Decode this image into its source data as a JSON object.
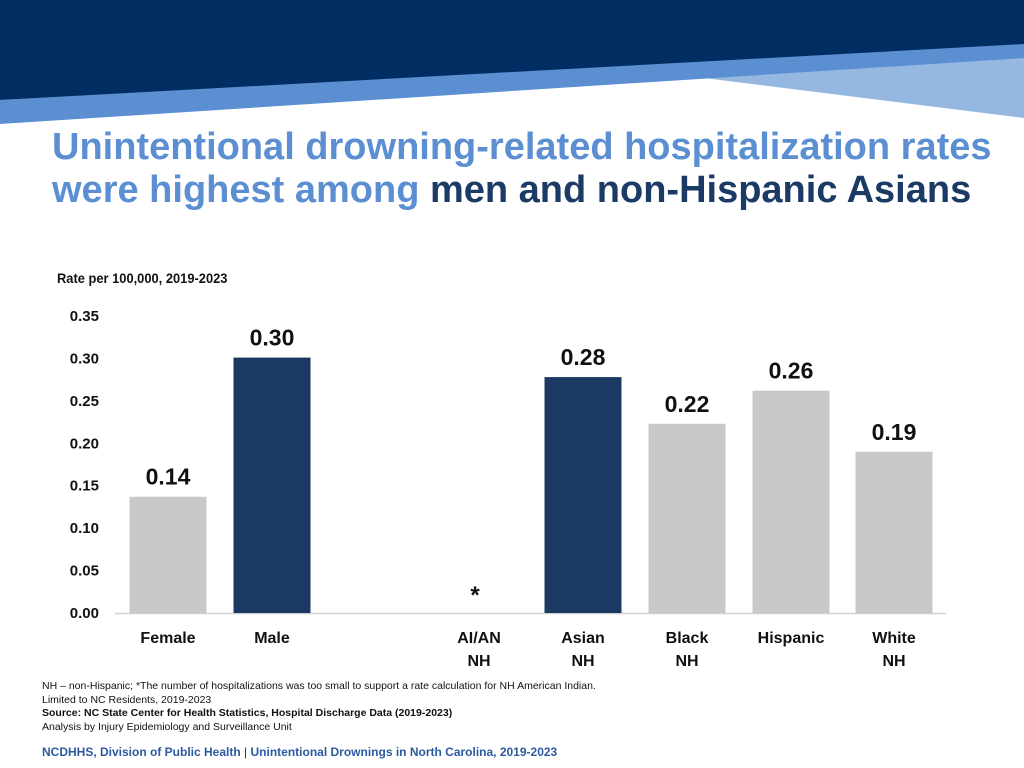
{
  "header": {
    "title_part1": "Unintentional drowning-related hospitalization rates were highest among ",
    "title_part2": "men and non-Hispanic Asians",
    "subtitle": "Rate per 100,000, 2019-2023",
    "colors": {
      "navy": "#002d62",
      "mid_blue": "#5b8fd2",
      "light_blue": "#94b8e0"
    }
  },
  "chart_data": {
    "type": "bar",
    "title": "Unintentional drowning-related hospitalization rates were highest among men and non-Hispanic Asians",
    "ylabel": "Rate per 100,000, 2019-2023",
    "xlabel": "",
    "ylim": [
      0,
      0.35
    ],
    "yticks": [
      "0.00",
      "0.05",
      "0.10",
      "0.15",
      "0.20",
      "0.25",
      "0.30",
      "0.35"
    ],
    "grid": false,
    "bars": [
      {
        "category_lines": [
          "Female"
        ],
        "value": 0.137,
        "label": "0.14",
        "highlight": false
      },
      {
        "category_lines": [
          "Male"
        ],
        "value": 0.301,
        "label": "0.30",
        "highlight": true
      },
      {
        "category_lines": [
          "AI/AN",
          "NH"
        ],
        "value": null,
        "label": "*",
        "highlight": false
      },
      {
        "category_lines": [
          "Asian",
          "NH"
        ],
        "value": 0.278,
        "label": "0.28",
        "highlight": true
      },
      {
        "category_lines": [
          "Black",
          "NH"
        ],
        "value": 0.223,
        "label": "0.22",
        "highlight": false
      },
      {
        "category_lines": [
          "Hispanic"
        ],
        "value": 0.262,
        "label": "0.26",
        "highlight": false
      },
      {
        "category_lines": [
          "White",
          "NH"
        ],
        "value": 0.19,
        "label": "0.19",
        "highlight": false
      }
    ],
    "colors": {
      "highlight": "#1b3a63",
      "other": "#c8c8c8",
      "axis": "#d0d0d0"
    }
  },
  "footnotes": {
    "line1": "NH – non-Hispanic; *The number of hospitalizations was too small to support a rate calculation for NH American Indian.",
    "line2": "Limited to NC Residents, 2019-2023",
    "line3": "Source: NC State Center for Health Statistics, Hospital Discharge Data (2019-2023)",
    "line4": "Analysis by Injury Epidemiology and Surveillance Unit"
  },
  "footer": {
    "left": "NCDHHS, Division of Public Health",
    "separator": "|",
    "right": "Unintentional Drownings in North Carolina, 2019-2023"
  }
}
